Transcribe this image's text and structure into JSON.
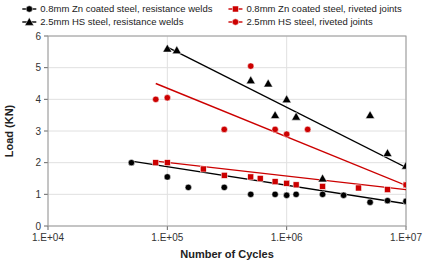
{
  "chart_data": {
    "type": "scatter",
    "xlabel": "Number of Cycles",
    "ylabel": "Load (KN)",
    "log": "x",
    "grid": true,
    "legend": "top",
    "xlim": [
      10000,
      10000000
    ],
    "xticks": [
      {
        "value": 10000,
        "label": "1.E+04"
      },
      {
        "value": 100000,
        "label": "1.E+05"
      },
      {
        "value": 1000000,
        "label": "1.E+06"
      },
      {
        "value": 10000000,
        "label": "1.E+07"
      }
    ],
    "ylim": [
      0,
      6
    ],
    "yticks": [
      0,
      1,
      2,
      3,
      4,
      5,
      6
    ],
    "series": [
      {
        "name": "0.8mm Zn coated steel, resistance welds",
        "color": "#000000",
        "marker": "circle",
        "x": [
          50000,
          100000,
          150000,
          300000,
          500000,
          800000,
          1000000,
          1200000,
          2000000,
          3000000,
          5000000,
          7000000,
          10000000
        ],
        "values": [
          2.0,
          1.55,
          1.22,
          1.22,
          1.0,
          1.0,
          0.97,
          1.0,
          1.0,
          0.97,
          0.75,
          0.8,
          0.78
        ],
        "trend_x": [
          50000,
          10000000
        ],
        "trend_y": [
          2.05,
          0.7
        ]
      },
      {
        "name": "0.8mm Zn coated steel, riveted joints",
        "color": "#cc0000",
        "marker": "square",
        "x": [
          80000,
          100000,
          200000,
          300000,
          500000,
          600000,
          800000,
          1000000,
          1200000,
          2000000,
          4000000,
          7000000,
          10000000
        ],
        "values": [
          2.0,
          2.0,
          1.8,
          1.6,
          1.55,
          1.5,
          1.4,
          1.35,
          1.3,
          1.25,
          1.2,
          1.15,
          1.3
        ],
        "trend_x": [
          80000,
          10000000
        ],
        "trend_y": [
          2.05,
          1.15
        ]
      },
      {
        "name": "2.5mm HS steel, resistance welds",
        "color": "#000000",
        "marker": "triangle",
        "x": [
          100000,
          120000,
          500000,
          700000,
          800000,
          1000000,
          1200000,
          2000000,
          5000000,
          7000000,
          10000000
        ],
        "values": [
          5.6,
          5.55,
          4.6,
          4.5,
          3.5,
          4.0,
          3.45,
          1.5,
          3.5,
          2.3,
          1.9
        ],
        "trend_x": [
          100000,
          10000000
        ],
        "trend_y": [
          5.65,
          1.85
        ]
      },
      {
        "name": "2.5mm HS steel, riveted joints",
        "color": "#cc0000",
        "marker": "circle",
        "x": [
          80000,
          100000,
          300000,
          500000,
          800000,
          1000000,
          1500000,
          10000000
        ],
        "values": [
          4.0,
          4.05,
          3.05,
          5.05,
          3.05,
          2.9,
          3.05,
          1.3
        ],
        "trend_x": [
          80000,
          10000000
        ],
        "trend_y": [
          4.5,
          1.28
        ]
      }
    ]
  }
}
